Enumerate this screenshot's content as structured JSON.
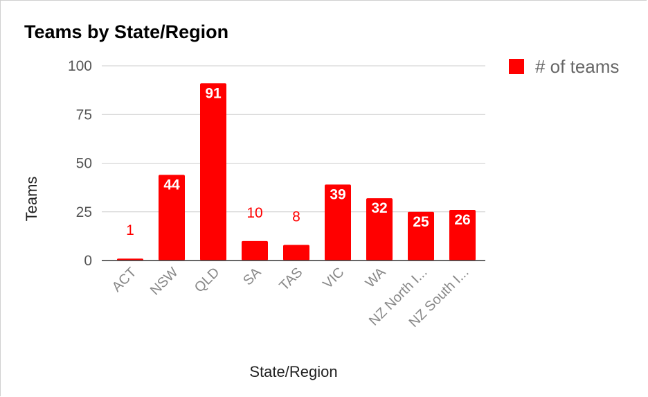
{
  "chart_data": {
    "type": "bar",
    "title": "Teams by State/Region",
    "xlabel": "State/Region",
    "ylabel": "Teams",
    "categories": [
      "ACT",
      "NSW",
      "QLD",
      "SA",
      "TAS",
      "VIC",
      "WA",
      "NZ North I...",
      "NZ South I..."
    ],
    "series": [
      {
        "name": "# of teams",
        "values": [
          1,
          44,
          91,
          10,
          8,
          39,
          32,
          25,
          26
        ],
        "color": "#ff0000"
      }
    ],
    "ylim": [
      0,
      100
    ],
    "yticks": [
      0,
      25,
      50,
      75,
      100
    ],
    "grid": true,
    "legend": "top-right",
    "data_labels": true
  }
}
